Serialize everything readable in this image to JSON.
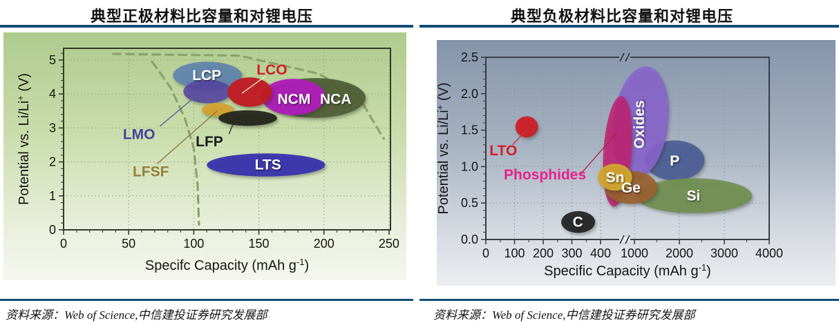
{
  "sections": [
    {
      "title": "典型正极材料比容量和对锂电压",
      "source": "资料来源：Web of Science,中信建投证券研究发展部"
    },
    {
      "title": "典型负极材料比容量和对锂电压",
      "source": "资料来源：Web of Science,中信建投证券研究发展部"
    }
  ],
  "colors": {
    "title_rule": "#0f4e78",
    "panel_left_top": "#aecb8d",
    "panel_left_bottom": "#f5f7ef",
    "panel_right_top": "#8494aa",
    "panel_right_bottom": "#ecedf0"
  },
  "chart_data": [
    {
      "type": "bubble",
      "title": "典型正极材料比容量和对锂电压",
      "xlabel": {
        "pre": "Specifc Capacity (mAh g",
        "sup": "-1",
        "post": ")"
      },
      "ylabel": {
        "pre": "Potential vs. Li/Li",
        "sup": "+",
        "post": " (V)"
      },
      "xlim": [
        0,
        251
      ],
      "ylim": [
        0,
        5.35
      ],
      "x_ticks": [
        0,
        50,
        100,
        150,
        200,
        250
      ],
      "x_tick_labels": [
        "0",
        "50",
        "100",
        "150",
        "200",
        "250"
      ],
      "y_ticks": [
        0,
        1,
        2,
        3,
        4,
        5
      ],
      "y_tick_labels": [
        "0",
        "1",
        "2",
        "3",
        "4",
        "5"
      ],
      "grid": "dotted",
      "series": [
        {
          "name": "LCP",
          "capacity": [
            84,
            137
          ],
          "voltage": [
            4.15,
            4.95
          ],
          "color": "#6386ae",
          "opacity": 0.95,
          "label": {
            "text": "LCP",
            "inside": true,
            "at": [
              110,
              4.55
            ],
            "color": "#ffffff"
          }
        },
        {
          "name": "LMO",
          "capacity": [
            92,
            129
          ],
          "voltage": [
            3.73,
            4.42
          ],
          "color": "#5847a5",
          "opacity": 0.88,
          "label": {
            "text": "LMO",
            "inside": false,
            "at": [
              58,
              2.82
            ],
            "color": "#4a3f9f",
            "line": {
              "from": [
                74,
                3.05
              ],
              "to": [
                101,
                3.92
              ],
              "color": "#5b5f9e"
            }
          }
        },
        {
          "name": "NCA",
          "capacity": [
            155,
            232
          ],
          "voltage": [
            3.3,
            4.47
          ],
          "color": "#526038",
          "opacity": 0.96,
          "label": {
            "text": "NCA",
            "inside": true,
            "at": [
              209,
              3.85
            ],
            "color": "#ffffff"
          }
        },
        {
          "name": "LFSF",
          "capacity": [
            106,
            131
          ],
          "voltage": [
            3.34,
            3.73
          ],
          "color": "#d2a232",
          "opacity": 0.95,
          "label": {
            "text": "LFSF",
            "inside": false,
            "at": [
              67,
              1.72
            ],
            "color": "#93803a",
            "line": {
              "from": [
                72,
                1.95
              ],
              "to": [
                118,
                3.5
              ],
              "color": "#8a7d45"
            }
          }
        },
        {
          "name": "LFP",
          "capacity": [
            119,
            164
          ],
          "voltage": [
            3.06,
            3.52
          ],
          "color": "#26261c",
          "opacity": 0.95,
          "label": {
            "text": "LFP",
            "inside": false,
            "at": [
              112,
              2.6
            ],
            "color": "#1c1c1c",
            "line": {
              "from": [
                127,
                2.82
              ],
              "to": [
                132,
                3.28
              ],
              "color": "#2a2a22"
            }
          }
        },
        {
          "name": "NCM",
          "capacity": [
            152,
            201
          ],
          "voltage": [
            3.38,
            4.45
          ],
          "color": "#b11ebc",
          "opacity": 0.95,
          "label": {
            "text": "NCM",
            "inside": true,
            "at": [
              177,
              3.85
            ],
            "color": "#ffffff"
          }
        },
        {
          "name": "LCO",
          "capacity": [
            126,
            160
          ],
          "voltage": [
            3.62,
            4.49
          ],
          "color": "#c01e25",
          "opacity": 0.97,
          "label": {
            "text": "LCO",
            "inside": false,
            "at": [
              160,
              4.72
            ],
            "color": "#d01c23",
            "line": {
              "from": [
                155,
                4.52
              ],
              "to": [
                137,
                4.02
              ],
              "color": "#efe9c0"
            }
          }
        },
        {
          "name": "LTS",
          "capacity": [
            110,
            201
          ],
          "voltage": [
            1.57,
            2.25
          ],
          "color": "#3b36ad",
          "opacity": 0.97,
          "label": {
            "text": "LTS",
            "inside": true,
            "at": [
              157,
              1.92
            ],
            "color": "#ffffff"
          }
        }
      ],
      "guides": [
        {
          "points": [
            [
              38,
              5.18
            ],
            [
              135,
              5.13
            ],
            [
              196,
              4.6
            ],
            [
              227,
              3.9
            ],
            [
              241,
              3.0
            ],
            [
              246,
              2.68
            ]
          ],
          "color": "#8ca26b"
        },
        {
          "points": [
            [
              68,
              4.95
            ],
            [
              82,
              4.2
            ],
            [
              93,
              3.3
            ],
            [
              100,
              2.4
            ],
            [
              103,
              1.3
            ],
            [
              104,
              0.15
            ]
          ],
          "color": "#8ca26b"
        }
      ]
    },
    {
      "type": "bubble",
      "title": "典型负极材料比容量和对锂电压",
      "xlabel": {
        "pre": "Specific Capacity (mAh g",
        "sup": "-1",
        "post": ")"
      },
      "ylabel": {
        "pre": "Potential vs. Li/Li",
        "sup": "+",
        "post": " (V)"
      },
      "xlim": [
        0,
        4000
      ],
      "ylim": [
        0,
        2.5
      ],
      "x_axis_break": {
        "after": 400,
        "resume": 1000
      },
      "x_ticks": [
        0,
        100,
        200,
        300,
        400,
        1000,
        2000,
        3000,
        4000
      ],
      "x_tick_labels": [
        "0",
        "100",
        "200",
        "300",
        "400",
        "1000",
        "2000",
        "3000",
        "4000"
      ],
      "y_ticks": [
        0,
        0.5,
        1,
        1.5,
        2,
        2.5
      ],
      "y_tick_labels": [
        "0.0",
        "0.5",
        "1.0",
        "1.5",
        "2.0",
        "2.5"
      ],
      "grid": "dotted",
      "series": [
        {
          "name": "P",
          "capacity": [
            1230,
            2560
          ],
          "voltage": [
            0.81,
            1.36
          ],
          "color": "#4a5c96",
          "opacity": 0.88,
          "label": {
            "text": "P",
            "inside": true,
            "at": [
              1897,
              1.08
            ],
            "color": "#ffffff"
          }
        },
        {
          "name": "Oxides",
          "capacity": [
            620,
            1750
          ],
          "voltage": [
            0.83,
            2.38
          ],
          "color": "#8a65cf",
          "opacity": 0.88,
          "tilt": 7,
          "label": {
            "text": "Oxides",
            "inside": true,
            "at": [
              1108,
              1.58
            ],
            "color": "#ffffff",
            "rotate": -90
          }
        },
        {
          "name": "Phosphides",
          "capacity": [
            450,
            950
          ],
          "voltage": [
            0.45,
            1.97
          ],
          "color": "#bf2475",
          "opacity": 0.88,
          "tilt": 4,
          "label": {
            "text": "Phosphides",
            "inside": false,
            "at": [
              206,
              0.89
            ],
            "color": "#e8218d",
            "line": {
              "from": [
                331,
                0.9
              ],
              "to": [
                694,
                1.47
              ],
              "color": "#b02348"
            }
          }
        },
        {
          "name": "Si",
          "capacity": [
            1020,
            3620
          ],
          "voltage": [
            0.36,
            0.84
          ],
          "color": "#70904d",
          "opacity": 0.88,
          "label": {
            "text": "Si",
            "inside": true,
            "at": [
              2314,
              0.6
            ],
            "color": "#ffffff"
          }
        },
        {
          "name": "Ge",
          "capacity": [
            470,
            1510
          ],
          "voltage": [
            0.49,
            0.94
          ],
          "color": "#9b622f",
          "opacity": 0.9,
          "label": {
            "text": "Ge",
            "inside": true,
            "at": [
              938,
              0.71
            ],
            "color": "#ffffff"
          }
        },
        {
          "name": "Sn",
          "capacity": [
            390,
            960
          ],
          "voltage": [
            0.67,
            1.04
          ],
          "color": "#d2a62e",
          "opacity": 0.95,
          "label": {
            "text": "Sn",
            "inside": true,
            "at": [
              657,
              0.85
            ],
            "color": "#ffffff"
          }
        },
        {
          "name": "C",
          "capacity": [
            263,
            381
          ],
          "voltage": [
            0.09,
            0.39
          ],
          "color": "#262626",
          "opacity": 0.95,
          "label": {
            "text": "C",
            "inside": true,
            "at": [
              321,
              0.24
            ],
            "color": "#ffffff"
          }
        },
        {
          "name": "LTO",
          "capacity": [
            103,
            182
          ],
          "voltage": [
            1.4,
            1.69
          ],
          "color": "#cb2128",
          "opacity": 0.97,
          "label": {
            "text": "LTO",
            "inside": false,
            "at": [
              61,
              1.22
            ],
            "color": "#d01f26",
            "line": {
              "from": [
                93,
                1.3
              ],
              "to": [
                147,
                1.52
              ],
              "color": "#c8363b"
            }
          }
        }
      ],
      "guides": []
    }
  ]
}
